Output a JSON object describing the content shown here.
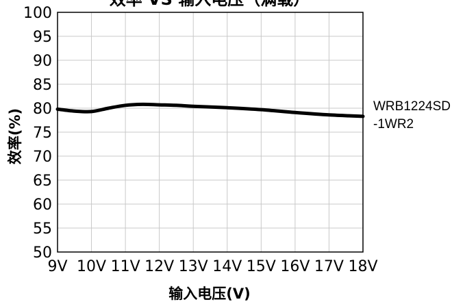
{
  "chart_data": {
    "type": "line",
    "title": "效率 VS 输入电压（满载）",
    "xlabel": "输入电压(V)",
    "ylabel": "效率(%)",
    "x": [
      9,
      10,
      11,
      12,
      13,
      14,
      15,
      16,
      17,
      18
    ],
    "categories": [
      "9V",
      "10V",
      "11V",
      "12V",
      "13V",
      "14V",
      "15V",
      "16V",
      "17V",
      "18V"
    ],
    "xlim": [
      9,
      18
    ],
    "ylim": [
      50,
      100
    ],
    "yticks": [
      "50",
      "55",
      "60",
      "65",
      "70",
      "75",
      "80",
      "85",
      "90",
      "95",
      "100"
    ],
    "grid": true,
    "legend": "right",
    "series": [
      {
        "name": "WRB1224SD-1WR2",
        "name_lines": [
          "WRB1224SD",
          "-1WR2"
        ],
        "x": [
          9,
          9.5,
          10,
          10.5,
          11,
          11.5,
          12,
          12.5,
          13,
          14,
          15,
          16,
          17,
          18
        ],
        "values": [
          79.8,
          79.4,
          79.3,
          80.0,
          80.6,
          80.8,
          80.7,
          80.6,
          80.4,
          80.1,
          79.7,
          79.1,
          78.6,
          78.3
        ],
        "color": "#000000"
      }
    ]
  }
}
